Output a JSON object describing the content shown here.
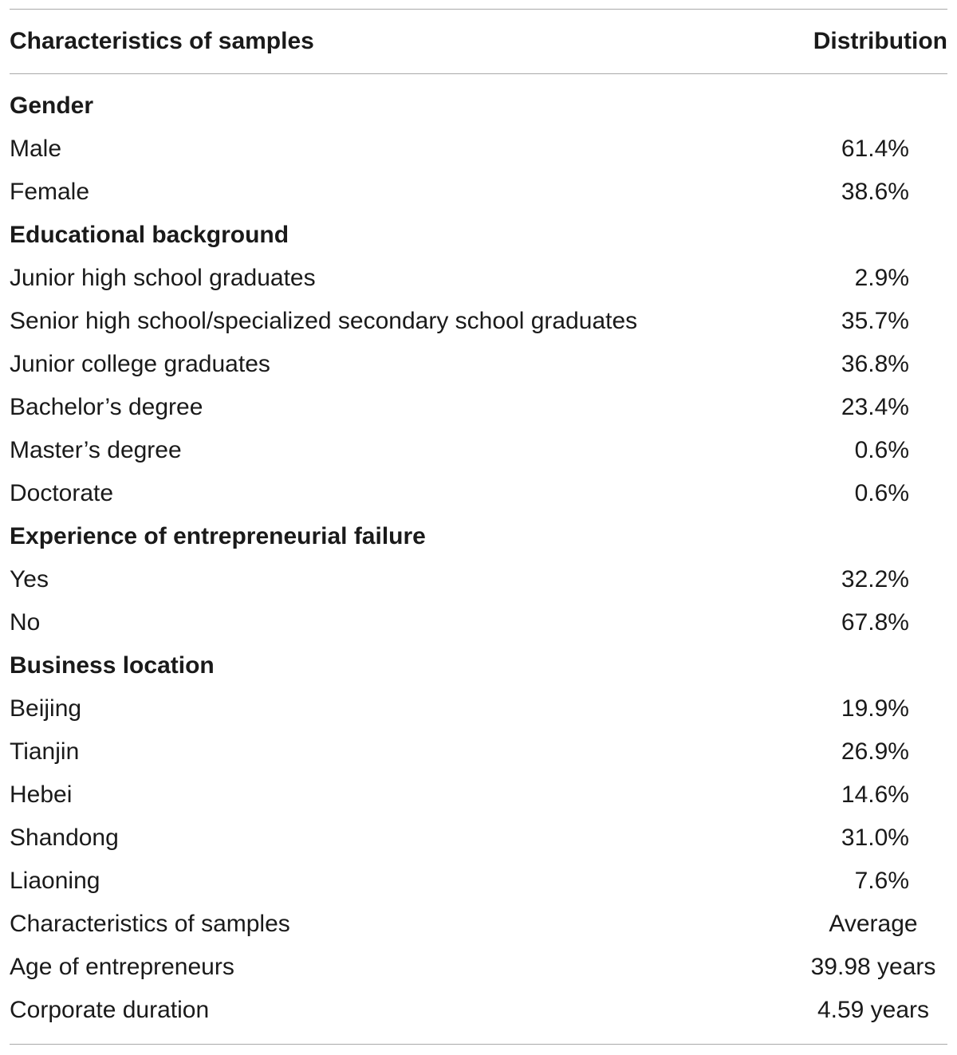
{
  "header": {
    "col1": "Characteristics of samples",
    "col2": "Distribution"
  },
  "rows": [
    {
      "label": "Gender",
      "value": "",
      "kind": "section"
    },
    {
      "label": "Male",
      "value": "61.4%",
      "kind": "num"
    },
    {
      "label": "Female",
      "value": "38.6%",
      "kind": "num"
    },
    {
      "label": "Educational background",
      "value": "",
      "kind": "section"
    },
    {
      "label": "Junior high school graduates",
      "value": "2.9%",
      "kind": "num"
    },
    {
      "label": "Senior high school/specialized secondary school graduates",
      "value": "35.7%",
      "kind": "num"
    },
    {
      "label": "Junior college graduates",
      "value": "36.8%",
      "kind": "num"
    },
    {
      "label": "Bachelor’s degree",
      "value": "23.4%",
      "kind": "num"
    },
    {
      "label": "Master’s degree",
      "value": "0.6%",
      "kind": "num"
    },
    {
      "label": "Doctorate",
      "value": "0.6%",
      "kind": "num"
    },
    {
      "label": "Experience of entrepreneurial failure",
      "value": "",
      "kind": "section"
    },
    {
      "label": "Yes",
      "value": "32.2%",
      "kind": "num"
    },
    {
      "label": "No",
      "value": "67.8%",
      "kind": "num"
    },
    {
      "label": "Business location",
      "value": "",
      "kind": "section"
    },
    {
      "label": "Beijing",
      "value": "19.9%",
      "kind": "num"
    },
    {
      "label": "Tianjin",
      "value": "26.9%",
      "kind": "num"
    },
    {
      "label": "Hebei",
      "value": "14.6%",
      "kind": "num"
    },
    {
      "label": "Shandong",
      "value": "31.0%",
      "kind": "num"
    },
    {
      "label": "Liaoning",
      "value": "7.6%",
      "kind": "num"
    },
    {
      "label": "Characteristics of samples",
      "value": "Average",
      "kind": "text"
    },
    {
      "label": "Age of entrepreneurs",
      "value": "39.98 years",
      "kind": "text"
    },
    {
      "label": "Corporate duration",
      "value": "4.59 years",
      "kind": "text"
    }
  ]
}
